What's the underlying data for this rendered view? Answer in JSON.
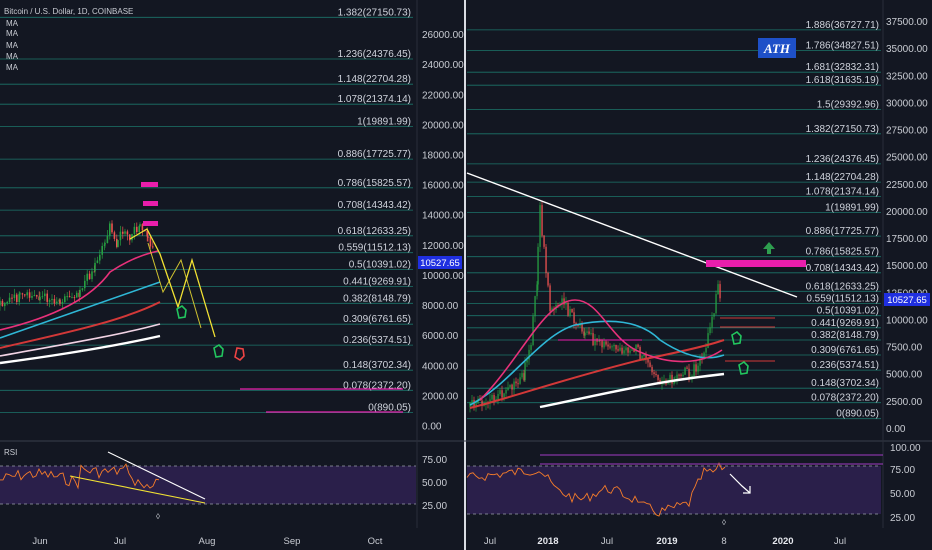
{
  "chart_data": [
    {
      "type": "candlestick",
      "title": "Bitcoin / U.S. Dollar, 1D, COINBASE",
      "legend": [
        "MA",
        "MA",
        "MA",
        "MA",
        "MA"
      ],
      "x_ticks": [
        "Jun",
        "Jul",
        "Aug",
        "Sep",
        "Oct"
      ],
      "y_ticks": [
        0,
        2000,
        4000,
        6000,
        8000,
        10000,
        12000,
        14000,
        16000,
        18000,
        20000,
        22000,
        24000,
        26000
      ],
      "y_tick_labels": [
        "0.00",
        "2000.00",
        "4000.00",
        "6000.00",
        "8000.00",
        "10000.00",
        "12000.00",
        "14000.00",
        "16000.00",
        "18000.00",
        "20000.00",
        "22000.00",
        "24000.00",
        "26000.00"
      ],
      "ylim": [
        -600,
        27900
      ],
      "price_label": "10527.65",
      "fib_levels": [
        {
          "label": "1.382(27150.73)",
          "value": 27150.73
        },
        {
          "label": "1.236(24376.45)",
          "value": 24376.45
        },
        {
          "label": "1.148(22704.28)",
          "value": 22704.28
        },
        {
          "label": "1.078(21374.14)",
          "value": 21374.14
        },
        {
          "label": "1(19891.99)",
          "value": 19891.99
        },
        {
          "label": "0.886(17725.77)",
          "value": 17725.77
        },
        {
          "label": "0.786(15825.57)",
          "value": 15825.57
        },
        {
          "label": "0.708(14343.42)",
          "value": 14343.42
        },
        {
          "label": "0.618(12633.25)",
          "value": 12633.25
        },
        {
          "label": "0.559(11512.13)",
          "value": 11512.13
        },
        {
          "label": "0.5(10391.02)",
          "value": 10391.02
        },
        {
          "label": "0.441(9269.91)",
          "value": 9269.91
        },
        {
          "label": "0.382(8148.79)",
          "value": 8148.79
        },
        {
          "label": "0.309(6761.65)",
          "value": 6761.65
        },
        {
          "label": "0.236(5374.51)",
          "value": 5374.51
        },
        {
          "label": "0.148(3702.34)",
          "value": 3702.34
        },
        {
          "label": "0.078(2372.20)",
          "value": 2372.2
        },
        {
          "label": "0(890.05)",
          "value": 890.05
        }
      ],
      "rsi": {
        "label": "RSI",
        "y_ticks": [
          "75.00",
          "50.00",
          "25.00"
        ]
      }
    },
    {
      "type": "candlestick",
      "annotation": "ATH",
      "x_ticks": [
        "Jul",
        "2018",
        "Jul",
        "2019",
        "8",
        "2020",
        "Jul"
      ],
      "y_ticks": [
        0,
        2500,
        5000,
        7500,
        10000,
        12500,
        15000,
        17500,
        20000,
        22500,
        25000,
        27500,
        30000,
        32500,
        35000,
        37500
      ],
      "y_tick_labels": [
        "0.00",
        "2500.00",
        "5000.00",
        "7500.00",
        "10000.00",
        "12500.00",
        "15000.00",
        "17500.00",
        "20000.00",
        "22500.00",
        "25000.00",
        "27500.00",
        "30000.00",
        "32500.00",
        "35000.00",
        "37500.00"
      ],
      "ylim": [
        -700,
        39300
      ],
      "price_label": "10527.65",
      "fib_levels": [
        {
          "label": "1.886(36727.71)",
          "value": 36727.71
        },
        {
          "label": "1.786(34827.51)",
          "value": 34827.51
        },
        {
          "label": "1.681(32832.31)",
          "value": 32832.31
        },
        {
          "label": "1.618(31635.19)",
          "value": 31635.19
        },
        {
          "label": "1.5(29392.96)",
          "value": 29392.96
        },
        {
          "label": "1.382(27150.73)",
          "value": 27150.73
        },
        {
          "label": "1.236(24376.45)",
          "value": 24376.45
        },
        {
          "label": "1.148(22704.28)",
          "value": 22704.28
        },
        {
          "label": "1.078(21374.14)",
          "value": 21374.14
        },
        {
          "label": "1(19891.99)",
          "value": 19891.99
        },
        {
          "label": "0.886(17725.77)",
          "value": 17725.77
        },
        {
          "label": "0.786(15825.57)",
          "value": 15825.57
        },
        {
          "label": "0.708(14343.42)",
          "value": 14343.42
        },
        {
          "label": "0.618(12633.25)",
          "value": 12633.25
        },
        {
          "label": "0.559(11512.13)",
          "value": 11512.13
        },
        {
          "label": "0.5(10391.02)",
          "value": 10391.02
        },
        {
          "label": "0.441(9269.91)",
          "value": 9269.91
        },
        {
          "label": "0.382(8148.79)",
          "value": 8148.79
        },
        {
          "label": "0.309(6761.65)",
          "value": 6761.65
        },
        {
          "label": "0.236(5374.51)",
          "value": 5374.51
        },
        {
          "label": "0.148(3702.34)",
          "value": 3702.34
        },
        {
          "label": "0.078(2372.20)",
          "value": 2372.2
        },
        {
          "label": "0(890.05)",
          "value": 890.05
        }
      ],
      "rsi": {
        "y_ticks": [
          "100.00",
          "75.00",
          "50.00",
          "25.00"
        ]
      }
    }
  ],
  "colors": {
    "background": "#131722",
    "fib_line": "#1c7f72",
    "fib_text": "#cfd3dc",
    "price_tag": "#1f2fe0",
    "ath_box": "#1e50c8",
    "magenta": "#e91eac",
    "ma_pink": "#e8317a",
    "ma_cyan": "#2fb7d6",
    "ma_red": "#d23838",
    "ma_light": "#f1d3e4",
    "ma_white": "#ffffff",
    "rsi_line": "#f57c2a",
    "rsi_band": "#2a1f4a",
    "up_candle": "#26a041",
    "down_candle": "#ef5350",
    "yellow": "#f2e233"
  }
}
